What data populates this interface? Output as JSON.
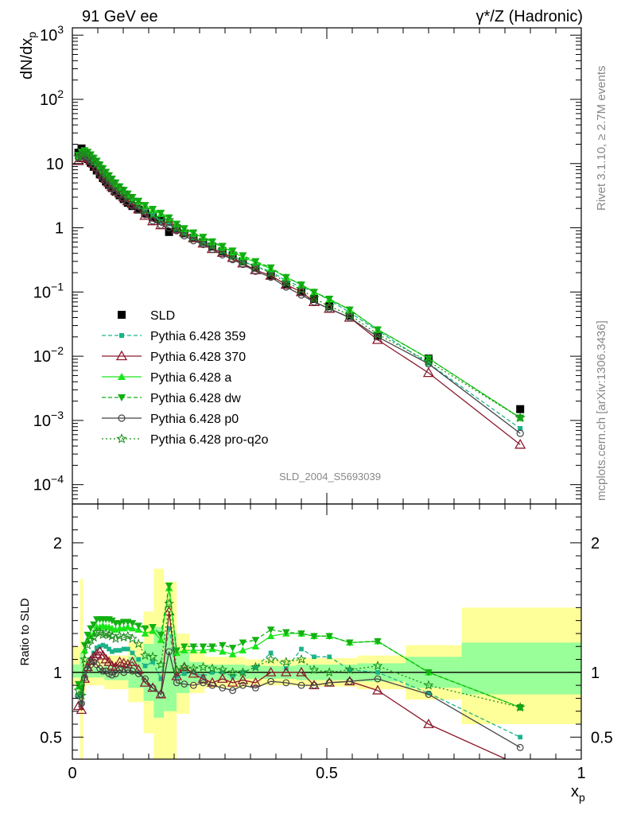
{
  "header": {
    "left": "91 GeV ee",
    "right": "γ*/Z (Hadronic)"
  },
  "side_text": {
    "rivet": "Rivet 3.1.10, ≥ 2.7M events",
    "mcplots": "mcplots.cern.ch [arXiv:1306.3436]"
  },
  "analysis_label": "SLD_2004_S5693039",
  "colors": {
    "SLD": "#000000",
    "p359": "#1ab38a",
    "p370": "#8b1a2e",
    "pa": "#19e619",
    "pdw": "#12b012",
    "pp0": "#444444",
    "pq2o": "#1a8c1a",
    "band_yellow": "#ffff99",
    "band_green": "#99ff99"
  },
  "chart_data": [
    {
      "type": "line",
      "panel": "main",
      "ylabel": "dN/dx",
      "ylabel_sub": "p",
      "yscale": "log",
      "xlim": [
        0,
        1
      ],
      "ylim": [
        5e-05,
        1300
      ],
      "y_ticks": [
        {
          "v": 1000,
          "m": "10",
          "e": "3"
        },
        {
          "v": 100,
          "m": "10",
          "e": "2"
        },
        {
          "v": 10,
          "m": "10",
          "e": ""
        },
        {
          "v": 1,
          "m": "1",
          "e": ""
        },
        {
          "v": 0.1,
          "m": "10",
          "e": "−1"
        },
        {
          "v": 0.01,
          "m": "10",
          "e": "−2"
        },
        {
          "v": 0.001,
          "m": "10",
          "e": "−3"
        },
        {
          "v": 0.0001,
          "m": "10",
          "e": "−4"
        }
      ],
      "legend_position": "lower-left",
      "x": [
        0.012,
        0.018,
        0.024,
        0.03,
        0.036,
        0.042,
        0.048,
        0.054,
        0.06,
        0.066,
        0.072,
        0.078,
        0.085,
        0.093,
        0.101,
        0.109,
        0.118,
        0.13,
        0.143,
        0.158,
        0.174,
        0.19,
        0.205,
        0.22,
        0.238,
        0.257,
        0.275,
        0.295,
        0.315,
        0.335,
        0.36,
        0.39,
        0.42,
        0.45,
        0.475,
        0.505,
        0.545,
        0.6,
        0.7,
        0.88
      ],
      "series": [
        {
          "name": "SLD",
          "key": "SLD",
          "marker": "square",
          "dash": "",
          "line": false,
          "values": [
            14.8,
            17.2,
            13.2,
            11.8,
            10.3,
            8.9,
            7.8,
            6.8,
            5.95,
            5.25,
            4.65,
            4.15,
            3.65,
            3.2,
            2.8,
            2.45,
            2.18,
            1.92,
            1.68,
            1.45,
            1.32,
            0.86,
            0.98,
            0.82,
            0.7,
            0.6,
            0.51,
            0.43,
            0.37,
            0.3,
            0.24,
            0.18,
            0.13,
            0.1,
            0.078,
            0.06,
            0.043,
            0.021,
            0.0092,
            0.0015
          ]
        },
        {
          "name": "Pythia 6.428 359",
          "key": "p359",
          "marker": "small-square",
          "dash": "5,3",
          "line": true,
          "values": [
            11.9,
            13.1,
            12.8,
            12.4,
            11.3,
            10.2,
            9.3,
            8.2,
            7.2,
            6.3,
            5.5,
            4.82,
            4.25,
            3.75,
            3.3,
            2.88,
            2.5,
            2.12,
            1.76,
            1.56,
            1.25,
            1.15,
            0.95,
            0.81,
            0.7,
            0.58,
            0.51,
            0.43,
            0.36,
            0.3,
            0.25,
            0.21,
            0.15,
            0.12,
            0.1,
            0.075,
            0.048,
            0.025,
            0.0077,
            0.00075
          ]
        },
        {
          "name": "Pythia 6.428 370",
          "key": "p370",
          "marker": "triangle-open",
          "dash": "",
          "line": true,
          "values": [
            11.0,
            12.2,
            12.5,
            12.3,
            11.2,
            10.0,
            8.9,
            7.9,
            6.7,
            5.8,
            5.0,
            4.34,
            3.8,
            3.45,
            3.0,
            2.6,
            2.35,
            1.95,
            1.54,
            1.27,
            1.1,
            1.26,
            0.95,
            0.85,
            0.69,
            0.57,
            0.47,
            0.41,
            0.34,
            0.28,
            0.22,
            0.18,
            0.13,
            0.1,
            0.07,
            0.055,
            0.04,
            0.018,
            0.0055,
            0.00042
          ]
        },
        {
          "name": "Pythia 6.428 a",
          "key": "pa",
          "marker": "triangle-up",
          "dash": "",
          "line": true,
          "values": [
            13.2,
            14.6,
            15.5,
            14.8,
            13.2,
            11.6,
            10.5,
            9.2,
            8.1,
            7.1,
            6.3,
            5.55,
            4.85,
            4.28,
            3.75,
            3.3,
            2.92,
            2.55,
            2.19,
            1.92,
            1.65,
            1.42,
            1.13,
            0.96,
            0.82,
            0.7,
            0.6,
            0.5,
            0.42,
            0.35,
            0.29,
            0.23,
            0.17,
            0.13,
            0.1,
            0.077,
            0.053,
            0.026,
            0.0092,
            0.0011
          ]
        },
        {
          "name": "Pythia 6.428 dw",
          "key": "pdw",
          "marker": "triangle-down",
          "dash": "5,3",
          "line": true,
          "values": [
            13.5,
            15.2,
            16.0,
            15.2,
            13.8,
            12.2,
            11.0,
            9.6,
            8.4,
            7.4,
            6.55,
            5.8,
            5.05,
            4.4,
            3.88,
            3.4,
            3.0,
            2.62,
            2.25,
            1.96,
            1.7,
            1.44,
            1.15,
            0.98,
            0.84,
            0.72,
            0.61,
            0.52,
            0.44,
            0.37,
            0.3,
            0.24,
            0.17,
            0.13,
            0.1,
            0.078,
            0.053,
            0.026,
            0.0092,
            0.0011
          ]
        },
        {
          "name": "Pythia 6.428 p0",
          "key": "pp0",
          "marker": "circle-open",
          "dash": "",
          "line": true,
          "values": [
            12.2,
            13.0,
            12.7,
            12.1,
            10.9,
            9.6,
            8.3,
            7.0,
            6.0,
            5.3,
            4.6,
            4.05,
            3.6,
            3.25,
            2.8,
            2.5,
            2.2,
            1.9,
            1.6,
            1.28,
            1.1,
            1.0,
            0.9,
            0.75,
            0.63,
            0.55,
            0.46,
            0.38,
            0.32,
            0.27,
            0.21,
            0.17,
            0.12,
            0.09,
            0.07,
            0.055,
            0.04,
            0.02,
            0.0076,
            0.00063
          ]
        },
        {
          "name": "Pythia 6.428 pro-q2o",
          "key": "pq2o",
          "marker": "star",
          "dash": "2,3",
          "line": true,
          "values": [
            12.8,
            14.2,
            14.6,
            14.4,
            12.9,
            11.3,
            10.2,
            8.9,
            7.7,
            6.8,
            6.0,
            5.3,
            4.6,
            4.1,
            3.55,
            3.15,
            2.75,
            2.35,
            1.9,
            1.62,
            1.4,
            1.32,
            1.0,
            0.85,
            0.72,
            0.62,
            0.53,
            0.44,
            0.37,
            0.3,
            0.25,
            0.2,
            0.14,
            0.11,
            0.08,
            0.06,
            0.044,
            0.022,
            0.0083,
            0.0011
          ]
        }
      ]
    },
    {
      "type": "line",
      "panel": "ratio",
      "ylabel": "Ratio to SLD",
      "xlabel": "x",
      "xlabel_sub": "p",
      "xlim": [
        0,
        1
      ],
      "ylim": [
        0.33,
        2.3
      ],
      "x_ticks": [
        {
          "v": 0,
          "label": "0"
        },
        {
          "v": 0.5,
          "label": "0.5"
        },
        {
          "v": 1,
          "label": "1"
        }
      ],
      "y_ticks": [
        {
          "v": 0.5,
          "label": "0.5"
        },
        {
          "v": 1,
          "label": "1"
        },
        {
          "v": 2,
          "label": "2"
        }
      ],
      "bands": [
        {
          "x0": 0.0,
          "x1": 0.015,
          "y_lo": 0.9,
          "y_hi": 1.2,
          "g_lo": 0.96,
          "g_hi": 1.06
        },
        {
          "x0": 0.015,
          "x1": 0.021,
          "y_lo": 0.33,
          "y_hi": 1.72,
          "g_lo": 0.85,
          "g_hi": 1.15
        },
        {
          "x0": 0.021,
          "x1": 0.027,
          "y_lo": 0.85,
          "y_hi": 1.15,
          "g_lo": 0.95,
          "g_hi": 1.05
        },
        {
          "x0": 0.027,
          "x1": 0.063,
          "y_lo": 0.9,
          "y_hi": 1.1,
          "g_lo": 0.96,
          "g_hi": 1.04
        },
        {
          "x0": 0.063,
          "x1": 0.11,
          "y_lo": 0.87,
          "y_hi": 1.13,
          "g_lo": 0.94,
          "g_hi": 1.06
        },
        {
          "x0": 0.11,
          "x1": 0.14,
          "y_lo": 0.77,
          "y_hi": 1.23,
          "g_lo": 0.88,
          "g_hi": 1.12
        },
        {
          "x0": 0.14,
          "x1": 0.16,
          "y_lo": 0.53,
          "y_hi": 1.47,
          "g_lo": 0.78,
          "g_hi": 1.22
        },
        {
          "x0": 0.16,
          "x1": 0.18,
          "y_lo": 0.33,
          "y_hi": 1.8,
          "g_lo": 0.65,
          "g_hi": 1.35
        },
        {
          "x0": 0.18,
          "x1": 0.205,
          "y_lo": 0.33,
          "y_hi": 1.7,
          "g_lo": 0.7,
          "g_hi": 1.3
        },
        {
          "x0": 0.205,
          "x1": 0.23,
          "y_lo": 0.68,
          "y_hi": 1.3,
          "g_lo": 0.84,
          "g_hi": 1.16
        },
        {
          "x0": 0.23,
          "x1": 0.26,
          "y_lo": 0.84,
          "y_hi": 1.16,
          "g_lo": 0.92,
          "g_hi": 1.08
        },
        {
          "x0": 0.26,
          "x1": 0.34,
          "y_lo": 0.88,
          "y_hi": 1.12,
          "g_lo": 0.94,
          "g_hi": 1.06
        },
        {
          "x0": 0.34,
          "x1": 0.44,
          "y_lo": 0.9,
          "y_hi": 1.1,
          "g_lo": 0.95,
          "g_hi": 1.05
        },
        {
          "x0": 0.44,
          "x1": 0.56,
          "y_lo": 0.89,
          "y_hi": 1.11,
          "g_lo": 0.94,
          "g_hi": 1.06
        },
        {
          "x0": 0.56,
          "x1": 0.655,
          "y_lo": 0.87,
          "y_hi": 1.13,
          "g_lo": 0.93,
          "g_hi": 1.07
        },
        {
          "x0": 0.655,
          "x1": 0.765,
          "y_lo": 0.79,
          "y_hi": 1.21,
          "g_lo": 0.88,
          "g_hi": 1.12
        },
        {
          "x0": 0.765,
          "x1": 1.0,
          "y_lo": 0.6,
          "y_hi": 1.5,
          "g_lo": 0.83,
          "g_hi": 1.23
        }
      ],
      "series": [
        {
          "key": "p359",
          "values": [
            0.82,
            0.76,
            0.97,
            1.05,
            1.1,
            1.15,
            1.19,
            1.2,
            1.21,
            1.2,
            1.18,
            1.16,
            1.17,
            1.17,
            1.18,
            1.18,
            1.15,
            1.1,
            1.05,
            1.08,
            0.95,
            1.34,
            0.97,
            0.99,
            1.0,
            0.97,
            1.0,
            1.0,
            0.97,
            1.0,
            1.04,
            1.15,
            1.03,
            1.18,
            1.12,
            1.12,
            1.02,
            1.0,
            0.84,
            0.5
          ]
        },
        {
          "key": "p370",
          "values": [
            0.74,
            0.71,
            0.95,
            1.04,
            1.09,
            1.12,
            1.14,
            1.16,
            1.13,
            1.1,
            1.08,
            1.05,
            1.04,
            1.08,
            1.07,
            1.06,
            1.08,
            1.02,
            0.92,
            0.88,
            0.83,
            1.47,
            0.97,
            1.04,
            0.99,
            0.95,
            0.92,
            0.95,
            0.92,
            0.94,
            0.92,
            1.0,
            1.0,
            1.0,
            0.9,
            0.92,
            0.93,
            0.86,
            0.6,
            0.28
          ]
        },
        {
          "key": "pa",
          "values": [
            0.89,
            0.85,
            1.17,
            1.25,
            1.28,
            1.3,
            1.35,
            1.35,
            1.36,
            1.35,
            1.35,
            1.34,
            1.33,
            1.34,
            1.34,
            1.35,
            1.34,
            1.33,
            1.3,
            1.32,
            1.25,
            1.65,
            1.15,
            1.17,
            1.17,
            1.17,
            1.18,
            1.16,
            1.14,
            1.17,
            1.2,
            1.28,
            1.3,
            1.3,
            1.28,
            1.28,
            1.23,
            1.24,
            1.0,
            0.73
          ]
        },
        {
          "key": "pdw",
          "values": [
            0.91,
            0.88,
            1.21,
            1.29,
            1.34,
            1.37,
            1.41,
            1.41,
            1.41,
            1.41,
            1.41,
            1.4,
            1.38,
            1.38,
            1.39,
            1.39,
            1.38,
            1.36,
            1.34,
            1.35,
            1.29,
            1.67,
            1.17,
            1.2,
            1.2,
            1.2,
            1.2,
            1.21,
            1.19,
            1.23,
            1.25,
            1.33,
            1.31,
            1.3,
            1.28,
            1.28,
            1.23,
            1.24,
            1.0,
            0.73
          ]
        },
        {
          "key": "pp0",
          "values": [
            0.82,
            0.76,
            0.96,
            1.02,
            1.06,
            1.08,
            1.06,
            1.03,
            1.01,
            1.01,
            0.99,
            0.98,
            0.99,
            1.02,
            1.0,
            1.02,
            1.01,
            0.99,
            0.95,
            0.88,
            0.83,
            1.16,
            0.92,
            0.91,
            0.9,
            0.92,
            0.9,
            0.88,
            0.86,
            0.9,
            0.88,
            0.93,
            0.92,
            0.9,
            0.9,
            0.92,
            0.93,
            0.95,
            0.83,
            0.42
          ]
        },
        {
          "key": "pq2o",
          "values": [
            0.86,
            0.82,
            1.1,
            1.21,
            1.25,
            1.27,
            1.31,
            1.31,
            1.29,
            1.3,
            1.29,
            1.28,
            1.26,
            1.28,
            1.27,
            1.28,
            1.26,
            1.22,
            1.13,
            1.12,
            1.06,
            1.53,
            1.02,
            1.04,
            1.03,
            1.04,
            1.03,
            1.02,
            1.0,
            1.0,
            1.04,
            1.1,
            1.08,
            1.1,
            1.02,
            1.0,
            1.02,
            1.05,
            0.9,
            0.73
          ]
        }
      ]
    }
  ]
}
